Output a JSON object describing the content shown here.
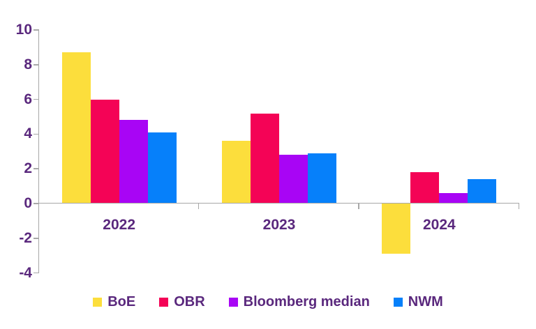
{
  "chart_data": {
    "type": "bar",
    "title": "",
    "xlabel": "",
    "ylabel": "",
    "categories": [
      "2022",
      "2023",
      "2024"
    ],
    "series": [
      {
        "name": "BoE",
        "color": "#FCDE3C",
        "values": [
          8.7,
          3.6,
          -2.9
        ]
      },
      {
        "name": "OBR",
        "color": "#F40356",
        "values": [
          6.0,
          5.2,
          1.8
        ]
      },
      {
        "name": "Bloomberg median",
        "color": "#A805F5",
        "values": [
          4.8,
          2.8,
          0.6
        ]
      },
      {
        "name": "NWM",
        "color": "#0680FA",
        "values": [
          4.1,
          2.9,
          1.4
        ]
      }
    ],
    "ylim": [
      -4,
      10
    ],
    "yticks": [
      10,
      8,
      6,
      4,
      2,
      0,
      -2,
      -4
    ],
    "grid": false,
    "legend_position": "bottom",
    "axis_color": "#A8A8A8",
    "text_color": "#5A287D",
    "background": "#FFFFFF"
  }
}
